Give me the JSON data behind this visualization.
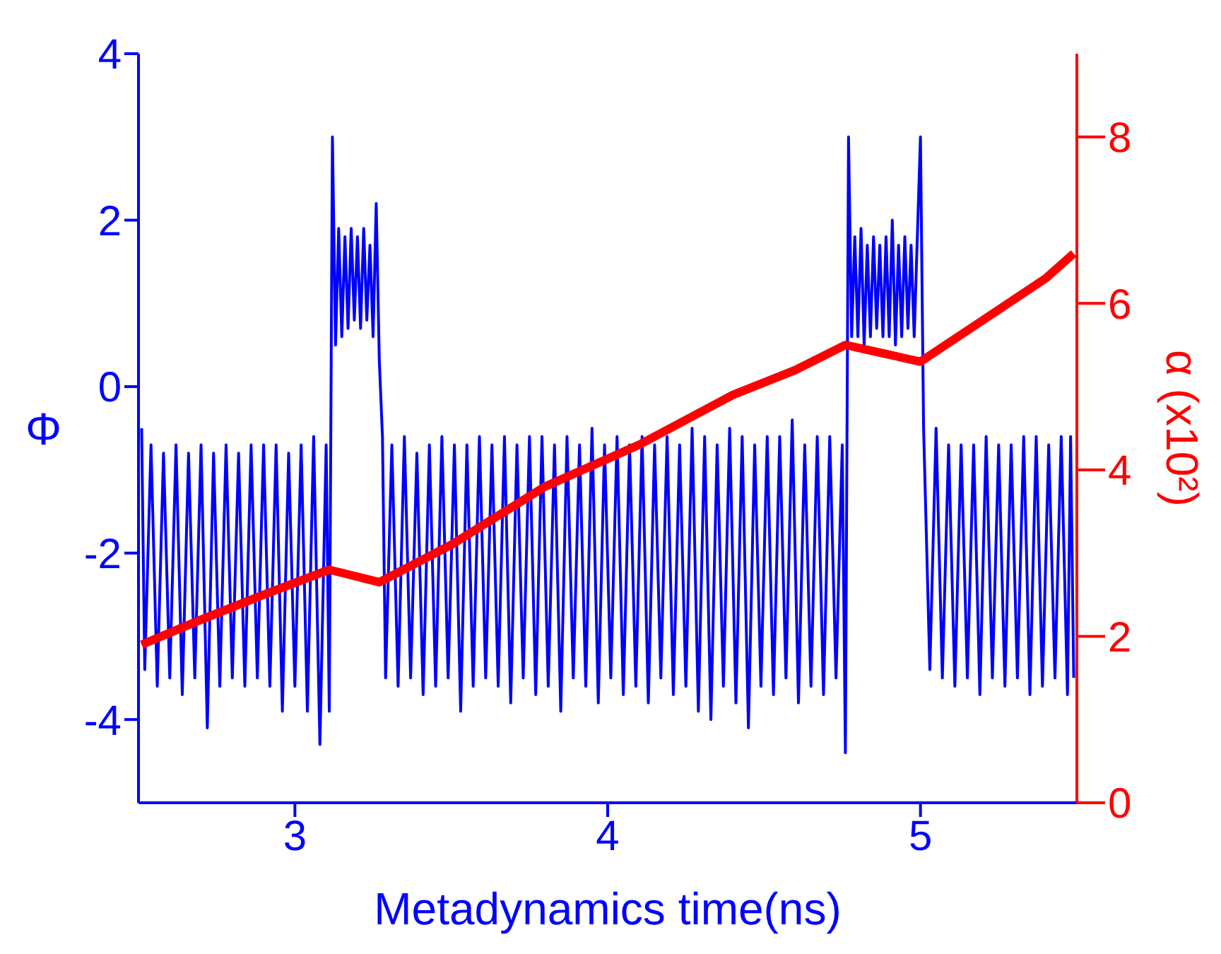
{
  "chart_data": {
    "type": "line",
    "xlabel": "Metadynamics time(ns)",
    "ylabel": "Φ",
    "y2label": "α (x10²)",
    "xlim": [
      2.5,
      5.5
    ],
    "xticks": [
      3,
      4,
      5
    ],
    "ylim": [
      -5,
      4
    ],
    "yticks": [
      -4,
      -2,
      0,
      2,
      4
    ],
    "y2lim": [
      0,
      9
    ],
    "y2ticks": [
      0,
      2,
      4,
      6,
      8
    ],
    "marker": "none",
    "line_style": "solid",
    "series": [
      {
        "color": "#0000ff",
        "x": [
          2.51,
          2.52,
          2.54,
          2.56,
          2.58,
          2.6,
          2.62,
          2.64,
          2.66,
          2.68,
          2.7,
          2.72,
          2.74,
          2.76,
          2.78,
          2.8,
          2.82,
          2.84,
          2.86,
          2.88,
          2.9,
          2.92,
          2.94,
          2.96,
          2.98,
          3.0,
          3.02,
          3.04,
          3.06,
          3.08,
          3.1,
          3.11,
          3.12,
          3.13,
          3.14,
          3.15,
          3.16,
          3.17,
          3.18,
          3.19,
          3.2,
          3.21,
          3.22,
          3.23,
          3.24,
          3.25,
          3.26,
          3.27,
          3.28,
          3.29,
          3.31,
          3.33,
          3.35,
          3.37,
          3.39,
          3.41,
          3.43,
          3.45,
          3.47,
          3.49,
          3.51,
          3.53,
          3.55,
          3.57,
          3.59,
          3.61,
          3.63,
          3.65,
          3.67,
          3.69,
          3.71,
          3.73,
          3.75,
          3.77,
          3.79,
          3.81,
          3.83,
          3.85,
          3.87,
          3.89,
          3.91,
          3.93,
          3.95,
          3.97,
          3.99,
          4.01,
          4.03,
          4.05,
          4.07,
          4.09,
          4.11,
          4.13,
          4.15,
          4.17,
          4.19,
          4.21,
          4.23,
          4.25,
          4.27,
          4.29,
          4.31,
          4.33,
          4.35,
          4.37,
          4.39,
          4.41,
          4.43,
          4.45,
          4.47,
          4.49,
          4.51,
          4.53,
          4.55,
          4.57,
          4.59,
          4.61,
          4.63,
          4.65,
          4.67,
          4.69,
          4.71,
          4.73,
          4.75,
          4.76,
          4.77,
          4.78,
          4.79,
          4.8,
          4.81,
          4.82,
          4.83,
          4.84,
          4.85,
          4.86,
          4.87,
          4.88,
          4.89,
          4.9,
          4.91,
          4.92,
          4.93,
          4.94,
          4.95,
          4.96,
          4.97,
          4.98,
          4.99,
          5.0,
          5.01,
          5.03,
          5.05,
          5.07,
          5.09,
          5.11,
          5.13,
          5.15,
          5.17,
          5.19,
          5.21,
          5.23,
          5.25,
          5.27,
          5.29,
          5.31,
          5.33,
          5.35,
          5.37,
          5.39,
          5.41,
          5.43,
          5.45,
          5.47,
          5.48,
          5.49
        ],
        "values": [
          -0.5,
          -3.4,
          -0.7,
          -3.6,
          -0.8,
          -3.5,
          -0.7,
          -3.7,
          -0.8,
          -3.5,
          -0.7,
          -4.1,
          -0.8,
          -3.6,
          -0.7,
          -3.5,
          -0.8,
          -3.6,
          -0.7,
          -3.5,
          -0.7,
          -3.6,
          -0.7,
          -3.9,
          -0.8,
          -3.6,
          -0.7,
          -3.9,
          -0.6,
          -4.3,
          -0.7,
          -3.9,
          3.0,
          0.5,
          1.9,
          0.6,
          1.8,
          0.7,
          1.9,
          0.8,
          1.8,
          0.7,
          1.9,
          0.8,
          1.7,
          0.6,
          2.2,
          0.3,
          -0.6,
          -3.5,
          -0.7,
          -3.6,
          -0.6,
          -3.5,
          -0.8,
          -3.7,
          -0.7,
          -3.6,
          -0.6,
          -3.5,
          -0.7,
          -3.9,
          -0.7,
          -3.6,
          -0.6,
          -3.5,
          -0.7,
          -3.6,
          -0.6,
          -3.8,
          -0.7,
          -3.5,
          -0.6,
          -3.7,
          -0.6,
          -3.6,
          -0.7,
          -3.9,
          -0.6,
          -3.5,
          -0.7,
          -3.6,
          -0.5,
          -3.8,
          -0.7,
          -3.5,
          -0.6,
          -3.7,
          -0.7,
          -3.6,
          -0.6,
          -3.8,
          -0.7,
          -3.5,
          -0.6,
          -3.7,
          -0.7,
          -3.6,
          -0.5,
          -3.9,
          -0.6,
          -4.0,
          -0.7,
          -3.6,
          -0.5,
          -3.8,
          -0.6,
          -4.1,
          -0.7,
          -3.6,
          -0.6,
          -3.7,
          -0.6,
          -3.5,
          -0.4,
          -3.8,
          -0.7,
          -3.6,
          -0.6,
          -3.7,
          -0.6,
          -3.5,
          -0.7,
          -4.4,
          3.0,
          0.6,
          1.8,
          0.6,
          1.9,
          0.5,
          1.7,
          0.6,
          1.8,
          0.7,
          1.7,
          0.6,
          1.8,
          0.6,
          2.0,
          0.5,
          1.7,
          0.6,
          1.8,
          0.7,
          1.7,
          0.6,
          1.8,
          3.0,
          -0.5,
          -3.4,
          -0.5,
          -3.5,
          -0.7,
          -3.6,
          -0.7,
          -3.5,
          -0.7,
          -3.7,
          -0.6,
          -3.5,
          -0.7,
          -3.6,
          -0.7,
          -3.5,
          -0.6,
          -3.7,
          -0.6,
          -3.6,
          -0.7,
          -3.5,
          -0.6,
          -3.7,
          -0.6,
          -3.5
        ]
      },
      {
        "color": "#ff0000",
        "axis": "y2",
        "x": [
          2.51,
          2.7,
          2.9,
          3.11,
          3.27,
          3.5,
          3.8,
          4.1,
          4.4,
          4.6,
          4.76,
          5.0,
          5.2,
          5.4,
          5.49
        ],
        "values": [
          1.9,
          2.2,
          2.5,
          2.8,
          2.65,
          3.1,
          3.8,
          4.3,
          4.9,
          5.2,
          5.5,
          5.3,
          5.8,
          6.3,
          6.6
        ]
      }
    ]
  }
}
